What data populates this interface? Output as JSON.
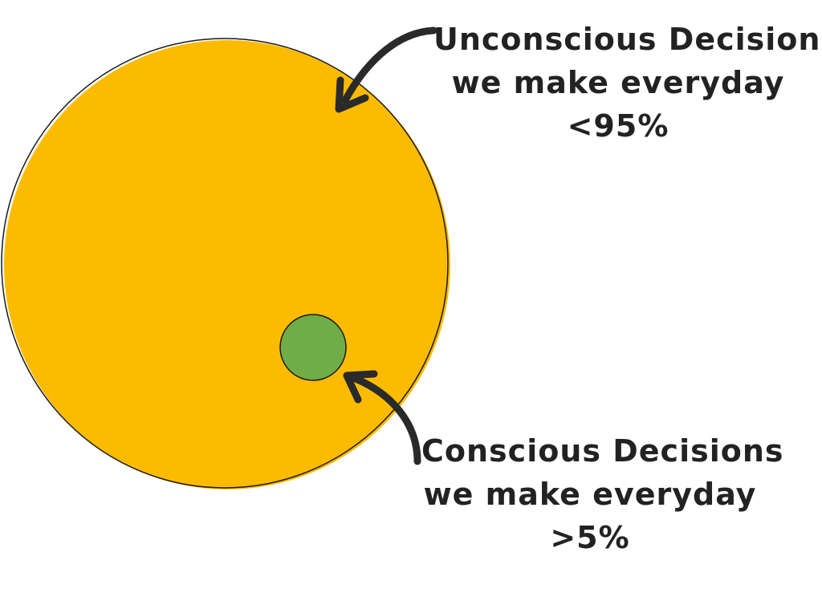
{
  "colors": {
    "big_circle": "#FDBB00",
    "small_circle": "#70AD47",
    "outline": "#1a1a1a",
    "text": "#222222"
  },
  "unconscious": {
    "line1": "Unconscious Decisions",
    "line2": "we make everyday",
    "line3": "<95%"
  },
  "conscious": {
    "line1": "Conscious Decisions",
    "line2": "we make everyday",
    "line3": ">5%"
  }
}
